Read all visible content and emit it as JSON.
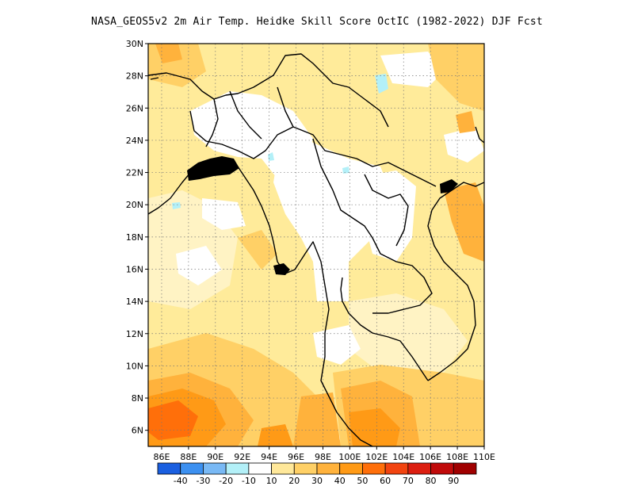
{
  "title": "NASA_GEOS5v2  2m Air Temp. Heidke Skill Score OctIC (1982-2022) DJF Fcst",
  "map": {
    "lat_range": [
      5,
      30
    ],
    "lon_range": [
      85,
      110
    ],
    "lat_ticks": [
      {
        "value": 30,
        "label": "30N"
      },
      {
        "value": 28,
        "label": "28N"
      },
      {
        "value": 26,
        "label": "26N"
      },
      {
        "value": 24,
        "label": "24N"
      },
      {
        "value": 22,
        "label": "22N"
      },
      {
        "value": 20,
        "label": "20N"
      },
      {
        "value": 18,
        "label": "18N"
      },
      {
        "value": 16,
        "label": "16N"
      },
      {
        "value": 14,
        "label": "14N"
      },
      {
        "value": 12,
        "label": "12N"
      },
      {
        "value": 10,
        "label": "10N"
      },
      {
        "value": 8,
        "label": "8N"
      },
      {
        "value": 6,
        "label": "6N"
      }
    ],
    "lon_ticks": [
      {
        "value": 86,
        "label": "86E"
      },
      {
        "value": 88,
        "label": "88E"
      },
      {
        "value": 90,
        "label": "90E"
      },
      {
        "value": 92,
        "label": "92E"
      },
      {
        "value": 94,
        "label": "94E"
      },
      {
        "value": 96,
        "label": "96E"
      },
      {
        "value": 98,
        "label": "98E"
      },
      {
        "value": 100,
        "label": "100E"
      },
      {
        "value": 102,
        "label": "102E"
      },
      {
        "value": 104,
        "label": "104E"
      },
      {
        "value": 106,
        "label": "106E"
      },
      {
        "value": 108,
        "label": "108E"
      },
      {
        "value": 110,
        "label": "110E"
      }
    ],
    "gridlines": true,
    "background_color": "#ffeb9a"
  },
  "colorbar": {
    "colors": [
      "#1a5fe0",
      "#3c90f0",
      "#79b9f5",
      "#b3f0f8",
      "#ffffff",
      "#ffe89a",
      "#ffd066",
      "#ffb23c",
      "#ff9a16",
      "#ff6f0a",
      "#f24410",
      "#dc1e10",
      "#c00a0a",
      "#a00000"
    ],
    "labels": [
      "-40",
      "-30",
      "-20",
      "-10",
      "10",
      "20",
      "30",
      "40",
      "50",
      "60",
      "70",
      "80",
      "90"
    ]
  }
}
